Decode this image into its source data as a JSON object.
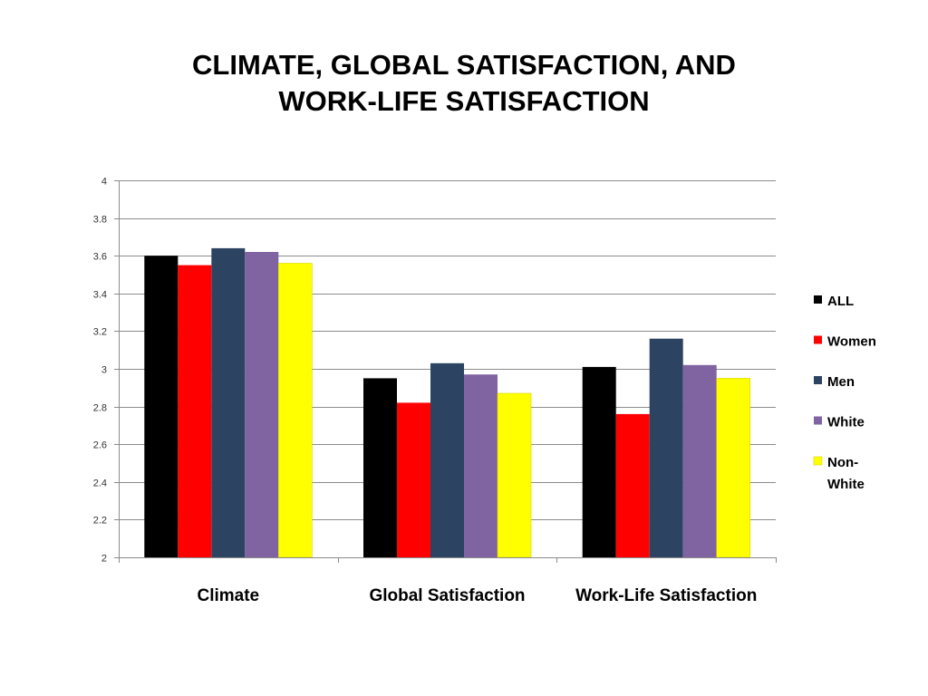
{
  "title": {
    "line1": "CLIMATE, GLOBAL SATISFACTION, AND",
    "line2": "WORK-LIFE SATISFACTION"
  },
  "chart_data": {
    "type": "bar",
    "title": "CLIMATE, GLOBAL SATISFACTION, AND WORK-LIFE SATISFACTION",
    "categories": [
      "Climate",
      "Global Satisfaction",
      "Work-Life Satisfaction"
    ],
    "series": [
      {
        "name": "ALL",
        "color": "#000000",
        "values": [
          3.6,
          2.95,
          3.01
        ]
      },
      {
        "name": "Women",
        "color": "#ff0000",
        "values": [
          3.55,
          2.82,
          2.76
        ]
      },
      {
        "name": "Men",
        "color": "#2c4462",
        "values": [
          3.64,
          3.03,
          3.16
        ]
      },
      {
        "name": "White",
        "color": "#8064a2",
        "values": [
          3.62,
          2.97,
          3.02
        ]
      },
      {
        "name": "Non-White",
        "color": "#ffff00",
        "values": [
          3.56,
          2.87,
          2.95
        ]
      }
    ],
    "legend_label_lines": [
      [
        "ALL"
      ],
      [
        "Women"
      ],
      [
        "Men"
      ],
      [
        "White"
      ],
      [
        "Non-",
        "White"
      ]
    ],
    "ylim": [
      2,
      4
    ],
    "yticks": [
      "2",
      "2.2",
      "2.4",
      "2.6",
      "2.8",
      "3",
      "3.2",
      "3.4",
      "3.6",
      "3.8",
      "4"
    ],
    "xlabel": "",
    "ylabel": "",
    "grid": true,
    "legend_position": "right"
  }
}
